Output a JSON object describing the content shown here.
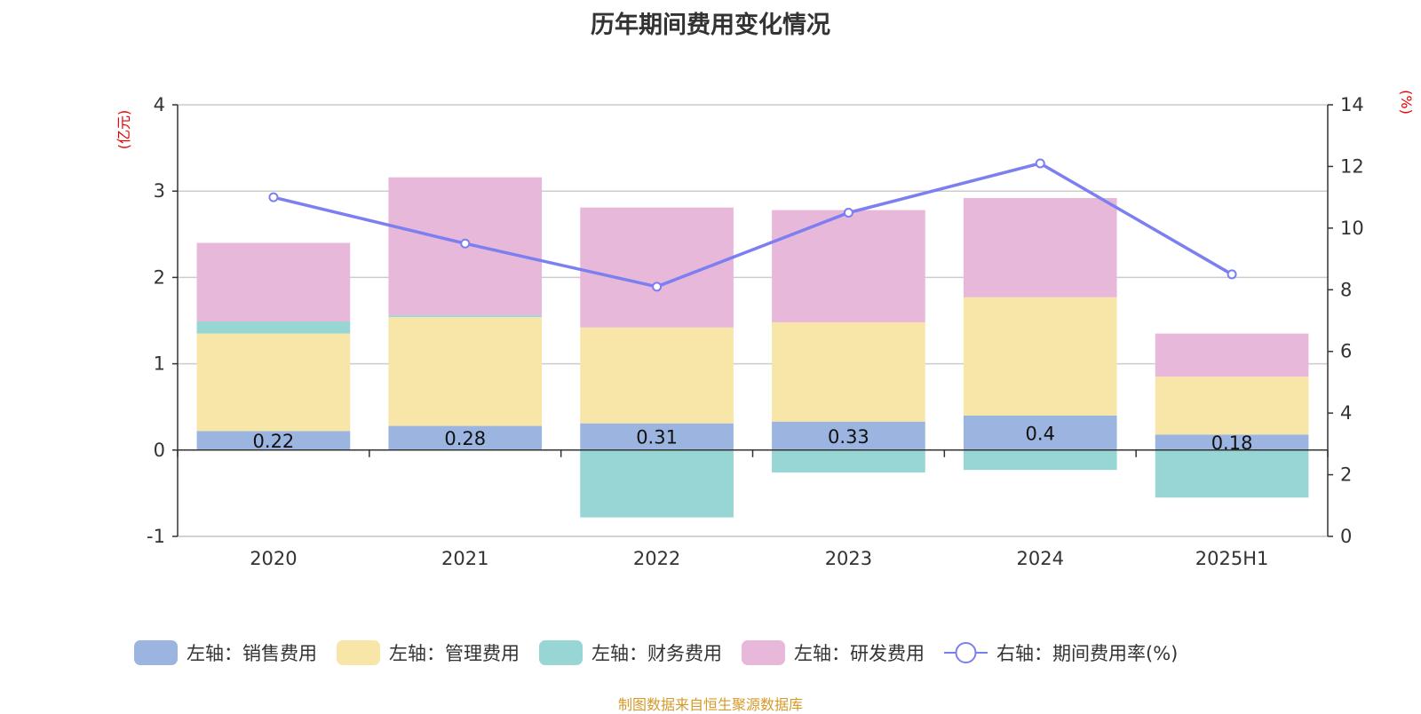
{
  "chart_data": {
    "type": "bar",
    "title": "历年期间费用变化情况",
    "categories": [
      "2020",
      "2021",
      "2022",
      "2023",
      "2024",
      "2025H1"
    ],
    "left_axis": {
      "unit": "(亿元)",
      "ticks": [
        -1,
        0,
        1,
        2,
        3,
        4
      ],
      "ylim": [
        -1,
        4
      ]
    },
    "right_axis": {
      "unit": "(%)",
      "ticks": [
        0,
        2,
        4,
        6,
        8,
        10,
        12,
        14
      ],
      "ylim": [
        0,
        14
      ]
    },
    "series": [
      {
        "name": "左轴：销售费用",
        "type": "bar",
        "axis": "left",
        "color": "#9bb5e0",
        "values": [
          0.22,
          0.28,
          0.31,
          0.33,
          0.4,
          0.18
        ],
        "labels": [
          "0.22",
          "0.28",
          "0.31",
          "0.33",
          "0.4",
          "0.18"
        ]
      },
      {
        "name": "左轴：管理费用",
        "type": "bar",
        "axis": "left",
        "color": "#f8e6a8",
        "values": [
          1.13,
          1.26,
          1.11,
          1.15,
          1.37,
          0.67
        ]
      },
      {
        "name": "左轴：财务费用",
        "type": "bar",
        "axis": "left",
        "color": "#98d5d5",
        "values": [
          0.14,
          0.02,
          -0.78,
          -0.26,
          -0.23,
          -0.55
        ]
      },
      {
        "name": "左轴：研发费用",
        "type": "bar",
        "axis": "left",
        "color": "#e8b8da",
        "values": [
          0.91,
          1.6,
          1.39,
          1.3,
          1.15,
          0.5
        ]
      },
      {
        "name": "右轴：期间费用率(%)",
        "type": "line",
        "axis": "right",
        "color": "#7b7ff0",
        "values": [
          11.0,
          9.5,
          8.1,
          10.5,
          12.1,
          8.5
        ]
      }
    ],
    "grid": true,
    "legend_position": "bottom"
  },
  "source_note": "制图数据来自恒生聚源数据库"
}
